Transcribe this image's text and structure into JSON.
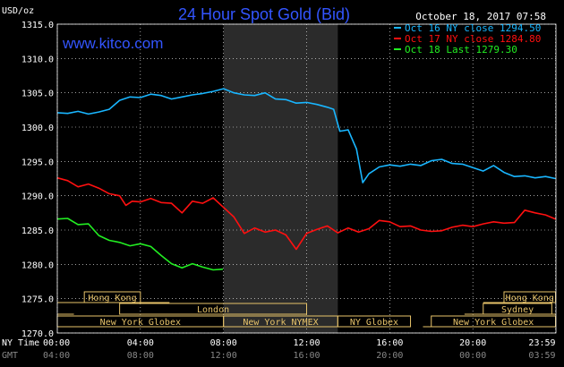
{
  "header": {
    "title": "24 Hour Spot Gold (Bid)",
    "unit": "USD/oz",
    "timestamp": "October 18, 2017 07:58",
    "watermark": "www.kitco.com"
  },
  "colors": {
    "background": "#000000",
    "title": "#3355ff",
    "grid": "#ffffff",
    "oct16": "#19b6ff",
    "oct17": "#ff1010",
    "oct18": "#22ee22",
    "session_shade": "#2b2b2b",
    "session_bar": "#e7c36a",
    "session_text": "#e7c36a"
  },
  "chart_data": {
    "type": "line",
    "title": "24 Hour Spot Gold (Bid)",
    "ylabel": "USD/oz",
    "ylim": [
      1270,
      1315
    ],
    "yticks": [
      1270,
      1275,
      1280,
      1285,
      1290,
      1295,
      1300,
      1305,
      1310,
      1315
    ],
    "ytick_labels": [
      "1270.0",
      "1275.0",
      "1280.0",
      "1285.0",
      "1290.0",
      "1295.0",
      "1300.0",
      "1305.0",
      "1310.0",
      "1315.0"
    ],
    "x_unit": "hours (New York time)",
    "xlim": [
      0,
      24
    ],
    "xticks_ny": [
      "00:00",
      "04:00",
      "08:00",
      "12:00",
      "16:00",
      "20:00",
      "23:59"
    ],
    "xticks_gmt": [
      "04:00",
      "08:00",
      "12:00",
      "16:00",
      "20:00",
      "00:00",
      "03:59"
    ],
    "xaxis_row_labels": [
      "NY Time",
      "GMT"
    ],
    "grid": true,
    "legend_position": "top-right",
    "series": [
      {
        "name": "Oct 16 NY close 1294.50",
        "color_key": "oct16",
        "x": [
          0,
          0.5,
          1,
          1.5,
          2,
          2.5,
          3,
          3.5,
          4,
          4.5,
          5,
          5.5,
          6,
          6.5,
          7,
          7.5,
          8,
          8.5,
          9,
          9.5,
          10,
          10.5,
          11,
          11.5,
          12,
          12.5,
          13,
          13.3,
          13.6,
          14,
          14.4,
          14.7,
          15,
          15.5,
          16,
          16.5,
          17,
          17.5,
          18,
          18.5,
          19,
          19.5,
          20,
          20.5,
          21,
          21.5,
          22,
          22.5,
          23,
          23.5,
          23.98
        ],
        "y": [
          1302.1,
          1302.0,
          1302.3,
          1301.9,
          1302.2,
          1302.6,
          1303.9,
          1304.4,
          1304.3,
          1304.8,
          1304.6,
          1304.1,
          1304.4,
          1304.7,
          1304.9,
          1305.2,
          1305.6,
          1305.0,
          1304.7,
          1304.6,
          1305.0,
          1304.1,
          1304.0,
          1303.5,
          1303.6,
          1303.3,
          1302.9,
          1302.6,
          1299.4,
          1299.6,
          1296.8,
          1291.9,
          1293.2,
          1294.2,
          1294.5,
          1294.3,
          1294.6,
          1294.4,
          1295.1,
          1295.3,
          1294.7,
          1294.6,
          1294.1,
          1293.6,
          1294.4,
          1293.4,
          1292.8,
          1292.9,
          1292.6,
          1292.8,
          1292.5
        ]
      },
      {
        "name": "Oct 17 NY close 1284.80",
        "color_key": "oct17",
        "x": [
          0,
          0.5,
          1,
          1.5,
          2,
          2.5,
          3,
          3.3,
          3.6,
          4,
          4.5,
          5,
          5.5,
          6,
          6.5,
          7,
          7.5,
          8,
          8.5,
          9,
          9.5,
          10,
          10.5,
          11,
          11.5,
          12,
          12.5,
          13,
          13.5,
          14,
          14.5,
          15,
          15.5,
          16,
          16.5,
          17,
          17.5,
          18,
          18.5,
          19,
          19.5,
          20,
          20.5,
          21,
          21.5,
          22,
          22.5,
          23,
          23.5,
          23.98
        ],
        "y": [
          1292.6,
          1292.2,
          1291.3,
          1291.7,
          1291.1,
          1290.3,
          1290.0,
          1288.6,
          1289.2,
          1289.1,
          1289.6,
          1289.0,
          1288.9,
          1287.5,
          1289.2,
          1288.9,
          1289.7,
          1288.3,
          1286.9,
          1284.5,
          1285.3,
          1284.7,
          1285.0,
          1284.3,
          1282.2,
          1284.5,
          1285.1,
          1285.6,
          1284.6,
          1285.3,
          1284.7,
          1285.2,
          1286.4,
          1286.2,
          1285.5,
          1285.6,
          1285.0,
          1284.8,
          1284.9,
          1285.4,
          1285.7,
          1285.5,
          1285.9,
          1286.2,
          1286.0,
          1286.1,
          1287.9,
          1287.5,
          1287.2,
          1286.6
        ]
      },
      {
        "name": "Oct 18 Last 1279.30",
        "color_key": "oct18",
        "x": [
          0,
          0.5,
          1,
          1.5,
          2,
          2.5,
          3,
          3.5,
          4,
          4.5,
          5,
          5.5,
          6,
          6.5,
          7,
          7.5,
          7.97
        ],
        "y": [
          1286.6,
          1286.7,
          1285.8,
          1285.9,
          1284.2,
          1283.5,
          1283.2,
          1282.7,
          1283.0,
          1282.6,
          1281.3,
          1280.1,
          1279.5,
          1280.1,
          1279.6,
          1279.2,
          1279.3
        ]
      }
    ],
    "session_shade": {
      "from": 8.0,
      "to": 13.5
    },
    "sessions": [
      {
        "label": "Hong Kong",
        "ranges": [
          [
            0,
            5.4
          ],
          [
            20.5,
            23.98
          ]
        ],
        "label_at": [
          [
            1.3,
            4.0
          ],
          [
            21.5,
            23.98
          ]
        ]
      },
      {
        "label": "Sydney",
        "ranges": [
          [
            0,
            0.8
          ],
          [
            19.6,
            23.98
          ]
        ],
        "label_at": [
          [
            20.5,
            23.8
          ]
        ]
      },
      {
        "label": "London",
        "ranges": [
          [
            3.0,
            12.0
          ]
        ],
        "label_at": [
          [
            3.0,
            12.0
          ]
        ]
      },
      {
        "label": "New York Globex",
        "ranges": [
          [
            0,
            8.0
          ],
          [
            17.6,
            23.98
          ]
        ],
        "label_at": [
          [
            0,
            8.0
          ],
          [
            18.0,
            23.98
          ]
        ]
      },
      {
        "label": "New York NYMEX",
        "ranges": [
          [
            8.0,
            13.5
          ]
        ],
        "label_at": [
          [
            8.0,
            13.5
          ]
        ]
      },
      {
        "label": "NY Globex",
        "ranges": [
          [
            13.5,
            17.0
          ]
        ],
        "label_at": [
          [
            13.5,
            17.0
          ]
        ]
      }
    ]
  }
}
